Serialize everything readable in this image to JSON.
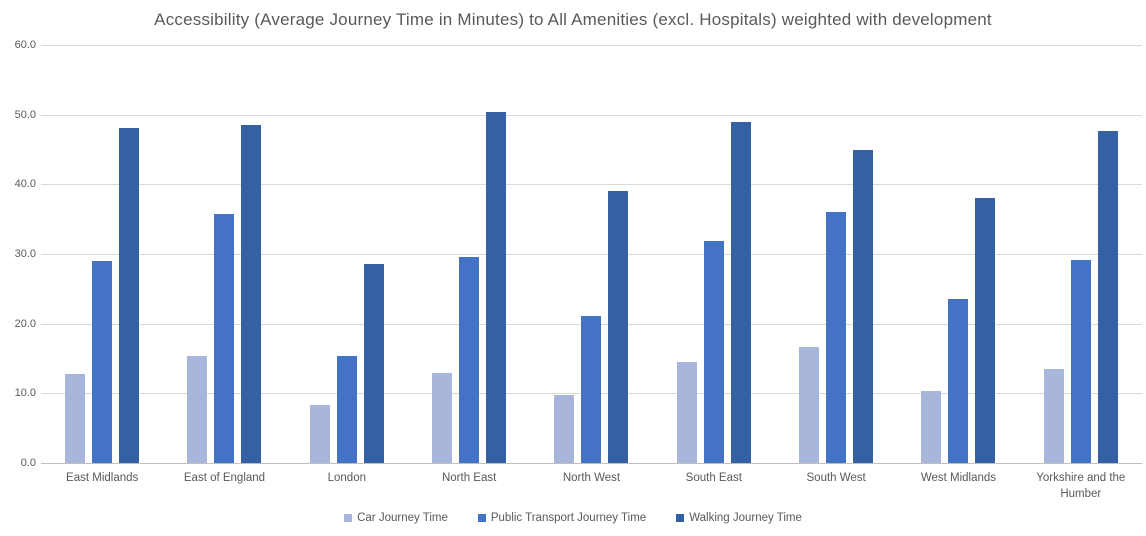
{
  "chart_data": {
    "type": "bar",
    "title": "Accessibility (Average Journey Time in Minutes) to All Amenities (excl. Hospitals) weighted with development",
    "categories": [
      "East Midlands",
      "East of England",
      "London",
      "North East",
      "North West",
      "South East",
      "South West",
      "West Midlands",
      "Yorkshire and the Humber"
    ],
    "series": [
      {
        "name": "Car Journey Time",
        "color": "#a8b6db",
        "values": [
          12.8,
          15.4,
          8.3,
          12.9,
          9.8,
          14.5,
          16.6,
          10.4,
          13.5
        ]
      },
      {
        "name": "Public Transport Journey Time",
        "color": "#4472c4",
        "values": [
          29.0,
          35.7,
          15.4,
          29.5,
          21.1,
          31.9,
          36.1,
          23.6,
          29.1
        ]
      },
      {
        "name": "Walking Journey Time",
        "color": "#3560a4",
        "values": [
          48.1,
          48.5,
          28.6,
          50.4,
          39.0,
          49.0,
          44.9,
          38.1,
          47.7
        ]
      }
    ],
    "ylim": [
      0,
      60
    ],
    "yticks": [
      "60.0",
      "50.0",
      "40.0",
      "30.0",
      "20.0",
      "10.0",
      "0.0"
    ],
    "grid": true,
    "legend_position": "bottom"
  },
  "colors": {
    "title_text": "#595959",
    "axis_text": "#595959",
    "gridline": "#d9d9d9",
    "axis_line": "#bfbfbf",
    "background": "#ffffff"
  }
}
